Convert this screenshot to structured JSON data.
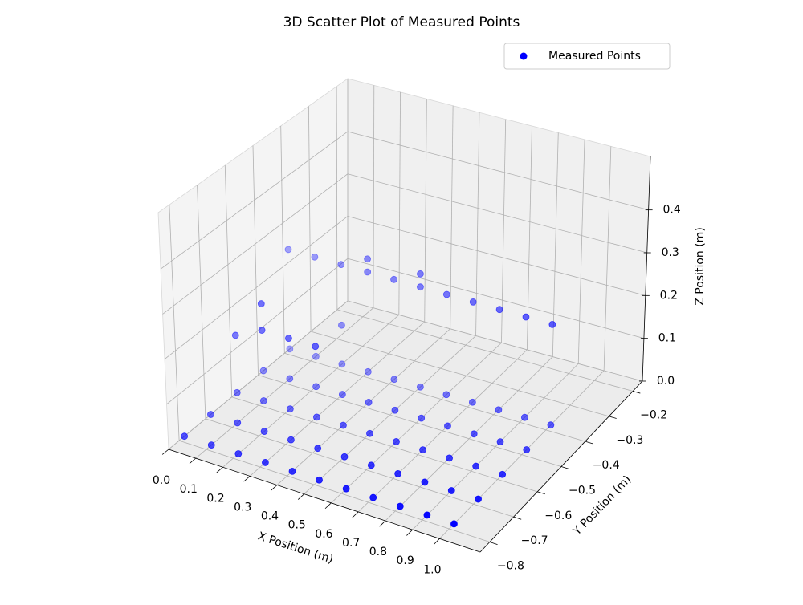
{
  "chart_data": {
    "type": "scatter3d",
    "title": "3D Scatter Plot of Measured Points",
    "xlabel": "X Position (m)",
    "ylabel": "Y Position (m)",
    "zlabel": "Z Position (m)",
    "xlim": [
      0,
      1.15
    ],
    "ylim": [
      -0.84,
      -0.16
    ],
    "zlim": [
      0,
      0.525
    ],
    "xticks": [
      {
        "value": 0,
        "label": "0.0"
      },
      0.1,
      0.2,
      0.3,
      0.4,
      0.5,
      0.6,
      0.7,
      0.8,
      0.9,
      {
        "value": 1,
        "label": "1.0"
      }
    ],
    "yticks": [
      {
        "value": -0.8,
        "label": "−0.8"
      },
      {
        "value": -0.7,
        "label": "−0.7"
      },
      {
        "value": -0.6,
        "label": "−0.6"
      },
      {
        "value": -0.5,
        "label": "−0.5"
      },
      {
        "value": -0.4,
        "label": "−0.4"
      },
      {
        "value": -0.3,
        "label": "−0.3"
      },
      {
        "value": -0.2,
        "label": "−0.2"
      }
    ],
    "zticks": [
      {
        "value": 0,
        "label": "0.0"
      },
      0.1,
      0.2,
      0.3,
      0.4
    ],
    "grid": true,
    "legend": "upper right",
    "series": [
      {
        "name": "Measured Points",
        "color": "#0000ff",
        "x": [
          0,
          0.1,
          0.2,
          0.3,
          0.4,
          0.5,
          0.6,
          0.7,
          0.8,
          0.9,
          1.0,
          0,
          0.1,
          0.2,
          0.3,
          0.4,
          0.5,
          0.6,
          0.7,
          0.8,
          0.9,
          1.0,
          0,
          0.1,
          0.2,
          0.3,
          0.4,
          0.5,
          0.6,
          0.7,
          0.8,
          0.9,
          1.0,
          0,
          0.1,
          0.2,
          0.3,
          0.4,
          0.5,
          0.6,
          0.7,
          0.8,
          0.9,
          1.0,
          0,
          0.1,
          0.2,
          0.3,
          0.4,
          0.5,
          0.6,
          0.7,
          0.8,
          0.9,
          1.0,
          0,
          0.1,
          0.2,
          0.3,
          0.4,
          0.5,
          0.6,
          0.7,
          0.8,
          0.9,
          1.0,
          0.3,
          0.5,
          0.2,
          0,
          0.1,
          0.2,
          0.3,
          0.1
        ],
        "y": [
          -0.78,
          -0.78,
          -0.78,
          -0.78,
          -0.78,
          -0.78,
          -0.78,
          -0.78,
          -0.78,
          -0.78,
          -0.78,
          -0.68,
          -0.68,
          -0.68,
          -0.68,
          -0.68,
          -0.68,
          -0.68,
          -0.68,
          -0.68,
          -0.68,
          -0.68,
          -0.58,
          -0.58,
          -0.58,
          -0.58,
          -0.58,
          -0.58,
          -0.58,
          -0.58,
          -0.58,
          -0.58,
          -0.58,
          -0.48,
          -0.48,
          -0.48,
          -0.48,
          -0.48,
          -0.48,
          -0.48,
          -0.48,
          -0.48,
          -0.48,
          -0.48,
          -0.38,
          -0.38,
          -0.38,
          -0.38,
          -0.38,
          -0.38,
          -0.38,
          -0.38,
          -0.38,
          -0.38,
          -0.38,
          -0.38,
          -0.38,
          -0.38,
          -0.38,
          -0.38,
          -0.38,
          -0.38,
          -0.38,
          -0.38,
          -0.38,
          -0.38,
          -0.38,
          -0.38,
          -0.38,
          -0.58,
          -0.58,
          -0.58,
          -0.58,
          -0.58
        ],
        "z": [
          0,
          0,
          0,
          0,
          0,
          0,
          0,
          0,
          0,
          0,
          0,
          0,
          0,
          0,
          0,
          0,
          0,
          0,
          0,
          0,
          0,
          0,
          0,
          0,
          0,
          0,
          0,
          0,
          0,
          0,
          0,
          0,
          0,
          0,
          0,
          0,
          0,
          0,
          0,
          0,
          0,
          0,
          0,
          0,
          0,
          0,
          0,
          0,
          0,
          0,
          0,
          0,
          0,
          0,
          0,
          0.23,
          0.23,
          0.23,
          0.23,
          0.23,
          0.23,
          0.23,
          0.23,
          0.23,
          0.23,
          0.23,
          0.26,
          0.26,
          0.09,
          0.13,
          0.16,
          0.16,
          0.16,
          0.22
        ]
      }
    ]
  }
}
